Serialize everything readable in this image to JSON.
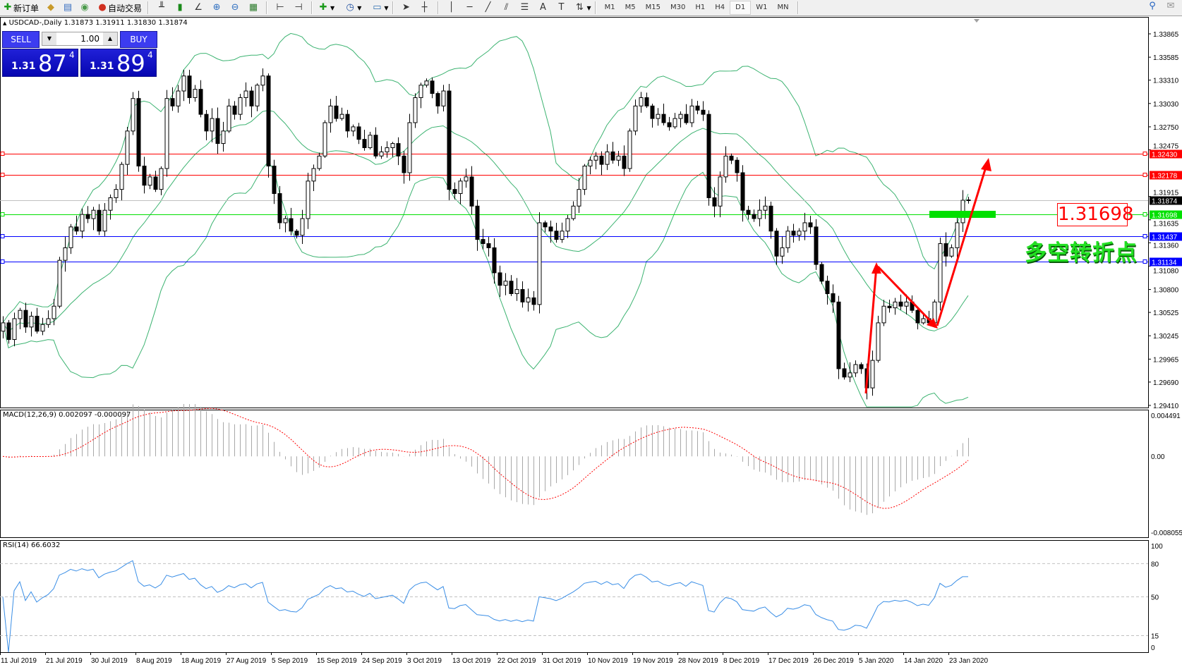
{
  "toolbar": {
    "new_order": "新订单",
    "auto_trading": "自动交易",
    "timeframes": [
      "M1",
      "M5",
      "M15",
      "M30",
      "H1",
      "H4",
      "D1",
      "W1",
      "MN"
    ],
    "active_timeframe": "D1"
  },
  "chart": {
    "symbol": "USDCAD-,Daily",
    "ohlc": "1.31873 1.31911 1.31830 1.31874"
  },
  "trade_panel": {
    "sell_label": "SELL",
    "buy_label": "BUY",
    "lot": "1.00",
    "sell": {
      "big": "1.31",
      "pips": "87",
      "frac": "4"
    },
    "buy": {
      "big": "1.31",
      "pips": "89",
      "frac": "4"
    }
  },
  "price_axis": [
    "1.33865",
    "1.33585",
    "1.33310",
    "1.33030",
    "1.32750",
    "1.32475",
    "1.31915",
    "1.31635",
    "1.31360",
    "1.31080",
    "1.30800",
    "1.30525",
    "1.30245",
    "1.29965",
    "1.29690",
    "1.29410"
  ],
  "levels": [
    {
      "price": "1.32430",
      "color": "#ff0000"
    },
    {
      "price": "1.32178",
      "color": "#ff0000"
    },
    {
      "price": "1.31874",
      "color": "#000000",
      "line_color": "#c0c0c0"
    },
    {
      "price": "1.31698",
      "color": "#00e000"
    },
    {
      "price": "1.31437",
      "color": "#0000ff"
    },
    {
      "price": "1.31134",
      "color": "#0000ff"
    }
  ],
  "annotation": {
    "price_box": "1.31698",
    "text": "多空转折点",
    "arrow_color": "#ff0000",
    "zone_color": "#00e000"
  },
  "macd": {
    "label": "MACD(12,26,9) 0.002097 -0.000097",
    "axis": [
      "0.004491",
      "0.00",
      "-0.008055"
    ],
    "range": [
      -0.008055,
      0.004491
    ]
  },
  "rsi": {
    "label": "RSI(14) 66.6032",
    "axis": [
      "100",
      "80",
      "50",
      "15",
      "0"
    ],
    "levels": [
      80,
      50,
      15
    ]
  },
  "time_axis": [
    "11 Jul 2019",
    "21 Jul 2019",
    "30 Jul 2019",
    "8 Aug 2019",
    "18 Aug 2019",
    "27 Aug 2019",
    "5 Sep 2019",
    "15 Sep 2019",
    "24 Sep 2019",
    "3 Oct 2019",
    "13 Oct 2019",
    "22 Oct 2019",
    "31 Oct 2019",
    "10 Nov 2019",
    "19 Nov 2019",
    "28 Nov 2019",
    "8 Dec 2019",
    "17 Dec 2019",
    "26 Dec 2019",
    "5 Jan 2020",
    "14 Jan 2020",
    "23 Jan 2020"
  ],
  "chart_data": {
    "type": "candlestick",
    "symbol": "USDCAD",
    "timeframe": "Daily",
    "ylim": [
      1.2941,
      1.33865
    ],
    "indicators": [
      "Bollinger Bands",
      "MACD(12,26,9)",
      "RSI(14)"
    ],
    "colors": {
      "bands": "#3cb371",
      "macd_hist": "#a8a8a8",
      "macd_signal": "#ff0000",
      "rsi": "#3a8ee6"
    },
    "closes": [
      1.304,
      1.302,
      1.3045,
      1.3055,
      1.3035,
      1.3048,
      1.303,
      1.3038,
      1.3045,
      1.306,
      1.3115,
      1.313,
      1.3155,
      1.315,
      1.317,
      1.3165,
      1.3175,
      1.315,
      1.3175,
      1.319,
      1.32,
      1.323,
      1.327,
      1.3309,
      1.3228,
      1.3205,
      1.3215,
      1.32,
      1.3225,
      1.3309,
      1.33,
      1.3318,
      1.3336,
      1.331,
      1.332,
      1.329,
      1.327,
      1.3285,
      1.3255,
      1.327,
      1.33,
      1.329,
      1.331,
      1.3318,
      1.33,
      1.3325,
      1.3336,
      1.3228,
      1.3195,
      1.316,
      1.3165,
      1.315,
      1.3145,
      1.3165,
      1.321,
      1.3225,
      1.324,
      1.328,
      1.33,
      1.3285,
      1.329,
      1.327,
      1.3275,
      1.326,
      1.325,
      1.3265,
      1.324,
      1.3245,
      1.325,
      1.3255,
      1.324,
      1.322,
      1.328,
      1.331,
      1.3325,
      1.333,
      1.3315,
      1.33,
      1.3318,
      1.32,
      1.3195,
      1.321,
      1.3215,
      1.318,
      1.314,
      1.3135,
      1.313,
      1.31,
      1.3085,
      1.309,
      1.3075,
      1.308,
      1.3065,
      1.307,
      1.3062,
      1.316,
      1.3155,
      1.315,
      1.314,
      1.315,
      1.3165,
      1.318,
      1.32,
      1.3228,
      1.3235,
      1.324,
      1.323,
      1.3245,
      1.3235,
      1.324,
      1.3225,
      1.327,
      1.33,
      1.331,
      1.33,
      1.3285,
      1.329,
      1.328,
      1.3275,
      1.3285,
      1.329,
      1.328,
      1.33,
      1.3295,
      1.329,
      1.319,
      1.318,
      1.3215,
      1.324,
      1.3235,
      1.322,
      1.3175,
      1.317,
      1.3165,
      1.3175,
      1.318,
      1.315,
      1.312,
      1.313,
      1.315,
      1.3145,
      1.315,
      1.316,
      1.3155,
      1.311,
      1.309,
      1.3075,
      1.3065,
      1.2985,
      1.2975,
      1.298,
      1.299,
      1.2985,
      1.2962,
      1.2995,
      1.304,
      1.306,
      1.3058,
      1.3065,
      1.306,
      1.3065,
      1.3055,
      1.304,
      1.3045,
      1.304,
      1.3065,
      1.3135,
      1.312,
      1.313,
      1.316,
      1.3187,
      1.31874
    ]
  }
}
